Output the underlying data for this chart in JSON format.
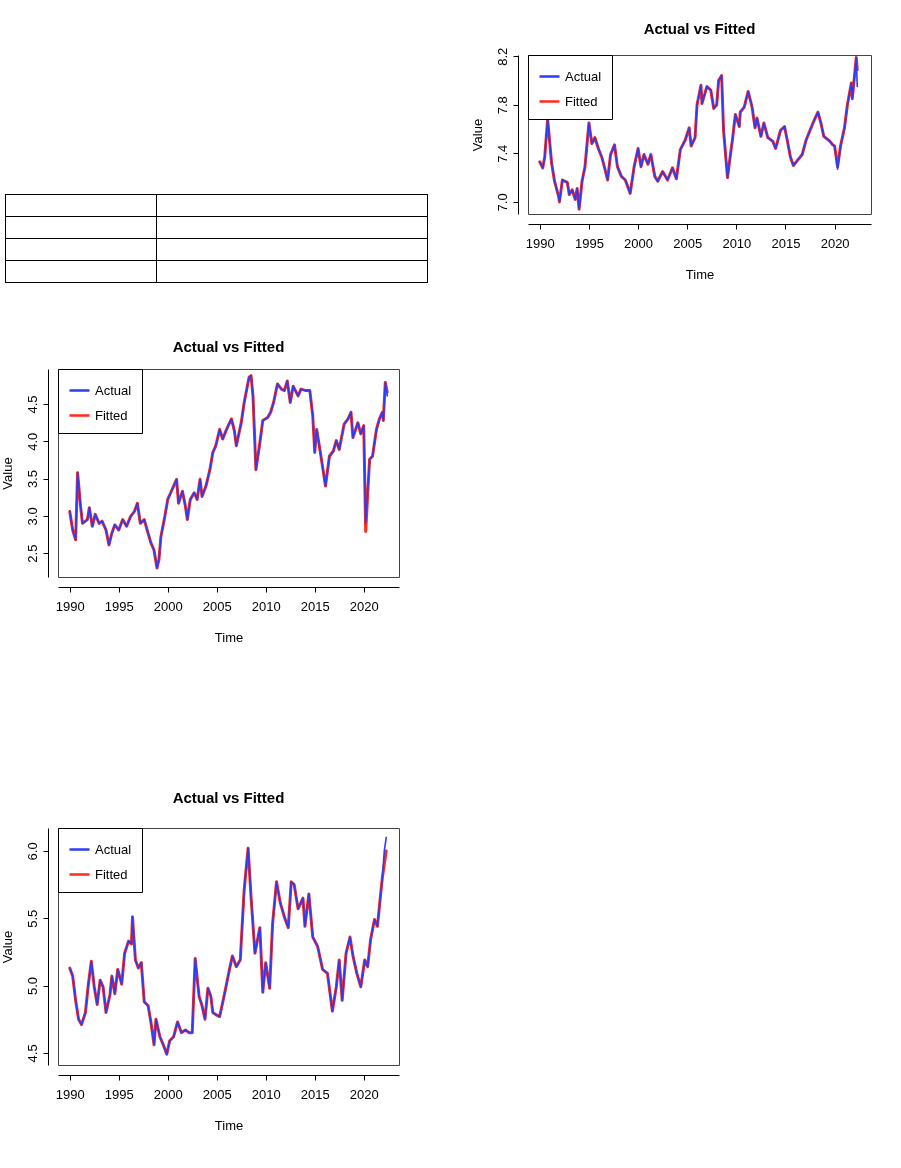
{
  "chart_data": [
    {
      "type": "line",
      "title": "Actual vs Fitted",
      "xlabel": "Time",
      "ylabel": "Value",
      "legend": "top left",
      "grid": false,
      "xlim": [
        1988.8,
        2023.6
      ],
      "ylim": [
        2.18,
        4.97
      ],
      "xticks": [
        1990,
        1995,
        2000,
        2005,
        2010,
        2015,
        2020
      ],
      "yticks": [
        2.5,
        {
          "value": 3,
          "label": "3.0"
        },
        3.5,
        {
          "value": 4,
          "label": "4.0"
        },
        4.5
      ],
      "x": [
        1990.0,
        1990.3,
        1990.6,
        1990.8,
        1991.1,
        1991.3,
        1991.8,
        1992.0,
        1992.3,
        1992.6,
        1993.0,
        1993.3,
        1993.7,
        1994.0,
        1994.3,
        1994.6,
        1995.0,
        1995.4,
        1995.8,
        1996.2,
        1996.6,
        1996.9,
        1997.2,
        1997.6,
        1997.9,
        1998.3,
        1998.6,
        1998.9,
        1999.1,
        1999.3,
        1999.7,
        2000.0,
        2000.3,
        2000.6,
        2000.9,
        2001.1,
        2001.5,
        2001.8,
        2002.0,
        2002.3,
        2002.7,
        2003.0,
        2003.3,
        2003.5,
        2003.9,
        2004.3,
        2004.6,
        2004.9,
        2005.3,
        2005.6,
        2006.0,
        2006.5,
        2006.8,
        2007.0,
        2007.5,
        2007.8,
        2008.3,
        2008.5,
        2008.7,
        2009.0,
        2009.4,
        2009.7,
        2010.2,
        2010.5,
        2010.8,
        2011.2,
        2011.6,
        2011.9,
        2012.2,
        2012.5,
        2012.8,
        2013.3,
        2013.6,
        2014.1,
        2014.5,
        2014.8,
        2015.0,
        2015.2,
        2015.6,
        2016.1,
        2016.5,
        2016.9,
        2017.2,
        2017.5,
        2018.0,
        2018.4,
        2018.7,
        2018.9,
        2019.4,
        2019.7,
        2020.0,
        2020.2,
        2020.6,
        2020.9,
        2021.3,
        2021.6,
        2021.9,
        2022.0,
        2022.2,
        2022.4
      ],
      "series": [
        {
          "name": "Actual",
          "color": "#2b3cf5",
          "values": [
            3.06,
            2.81,
            2.68,
            3.58,
            3.13,
            2.9,
            2.95,
            3.11,
            2.86,
            3.02,
            2.9,
            2.93,
            2.81,
            2.61,
            2.77,
            2.88,
            2.81,
            2.95,
            2.86,
            2.99,
            3.06,
            3.17,
            2.9,
            2.95,
            2.81,
            2.63,
            2.54,
            2.3,
            2.41,
            2.72,
            2.99,
            3.22,
            3.31,
            3.4,
            3.49,
            3.17,
            3.33,
            3.13,
            2.95,
            3.22,
            3.31,
            3.22,
            3.49,
            3.26,
            3.4,
            3.62,
            3.85,
            3.94,
            4.16,
            4.03,
            4.16,
            4.3,
            4.14,
            3.94,
            4.25,
            4.52,
            4.86,
            4.88,
            4.61,
            3.62,
            3.98,
            4.28,
            4.32,
            4.39,
            4.52,
            4.77,
            4.7,
            4.68,
            4.81,
            4.52,
            4.74,
            4.61,
            4.7,
            4.68,
            4.68,
            4.34,
            3.85,
            4.16,
            3.83,
            3.4,
            3.8,
            3.87,
            4.01,
            3.89,
            4.23,
            4.3,
            4.39,
            4.05,
            4.25,
            4.1,
            4.21,
            2.9,
            3.76,
            3.8,
            4.16,
            4.3,
            4.39,
            4.28,
            4.79,
            4.61
          ]
        },
        {
          "name": "Fitted",
          "color": "#ff2a1a",
          "values": [
            3.06,
            2.81,
            2.68,
            3.58,
            3.13,
            2.9,
            2.95,
            3.11,
            2.86,
            3.02,
            2.9,
            2.93,
            2.81,
            2.61,
            2.77,
            2.88,
            2.81,
            2.95,
            2.86,
            2.99,
            3.06,
            3.17,
            2.9,
            2.95,
            2.81,
            2.63,
            2.54,
            2.3,
            2.41,
            2.72,
            2.99,
            3.22,
            3.31,
            3.4,
            3.49,
            3.17,
            3.33,
            3.13,
            2.95,
            3.22,
            3.31,
            3.22,
            3.49,
            3.26,
            3.4,
            3.62,
            3.85,
            3.94,
            4.16,
            4.03,
            4.16,
            4.3,
            4.14,
            3.94,
            4.25,
            4.52,
            4.86,
            4.88,
            4.61,
            3.62,
            3.98,
            4.28,
            4.32,
            4.39,
            4.52,
            4.77,
            4.7,
            4.68,
            4.81,
            4.52,
            4.74,
            4.61,
            4.7,
            4.68,
            4.68,
            4.34,
            3.85,
            4.16,
            3.83,
            3.4,
            3.8,
            3.87,
            4.01,
            3.89,
            4.23,
            4.3,
            4.39,
            4.05,
            4.25,
            4.1,
            4.21,
            2.79,
            3.76,
            3.8,
            4.16,
            4.3,
            4.39,
            4.28,
            4.79,
            4.66
          ]
        }
      ]
    },
    {
      "type": "line",
      "title": "Actual vs Fitted",
      "xlabel": "Time",
      "ylabel": "Value",
      "legend": "top left",
      "grid": false,
      "xlim": [
        1988.8,
        2023.6
      ],
      "ylim": [
        4.41,
        6.17
      ],
      "xticks": [
        1990,
        1995,
        2000,
        2005,
        2010,
        2015,
        2020
      ],
      "yticks": [
        4.5,
        {
          "value": 5,
          "label": "5.0"
        },
        5.5,
        {
          "value": 6,
          "label": "6.0"
        }
      ],
      "x": [
        1990.0,
        1990.3,
        1990.6,
        1990.9,
        1991.2,
        1991.6,
        1991.9,
        1992.2,
        1992.5,
        1992.8,
        1993.1,
        1993.4,
        1993.7,
        1994.1,
        1994.3,
        1994.6,
        1994.9,
        1995.3,
        1995.6,
        1996.0,
        1996.3,
        1996.4,
        1996.7,
        1997.0,
        1997.3,
        1997.6,
        1998.0,
        1998.3,
        1998.6,
        1998.8,
        1999.2,
        1999.6,
        1999.9,
        2000.2,
        2000.6,
        2001.0,
        2001.4,
        2001.8,
        2002.2,
        2002.5,
        2002.8,
        2003.2,
        2003.5,
        2003.8,
        2004.1,
        2004.4,
        2004.6,
        2005.0,
        2005.3,
        2005.8,
        2006.3,
        2006.6,
        2007.0,
        2007.4,
        2007.8,
        2008.2,
        2008.5,
        2008.9,
        2009.4,
        2009.7,
        2010.0,
        2010.4,
        2010.7,
        2011.1,
        2011.5,
        2011.9,
        2012.3,
        2012.6,
        2012.9,
        2013.3,
        2013.8,
        2014.0,
        2014.4,
        2014.8,
        2015.3,
        2015.8,
        2016.3,
        2016.8,
        2017.2,
        2017.5,
        2017.8,
        2018.2,
        2018.6,
        2018.9,
        2019.3,
        2019.7,
        2020.1,
        2020.4,
        2020.7,
        2021.1,
        2021.4,
        2021.7,
        2021.9,
        2022.1,
        2022.3
      ],
      "series": [
        {
          "name": "Actual",
          "color": "#2b3cf5",
          "values": [
            5.13,
            5.07,
            4.89,
            4.75,
            4.71,
            4.8,
            5.01,
            5.18,
            4.99,
            4.86,
            5.04,
            4.99,
            4.8,
            4.93,
            5.07,
            4.94,
            5.12,
            5.01,
            5.24,
            5.33,
            5.31,
            5.51,
            5.19,
            5.13,
            5.17,
            4.88,
            4.85,
            4.72,
            4.56,
            4.75,
            4.62,
            4.55,
            4.49,
            4.59,
            4.62,
            4.73,
            4.65,
            4.67,
            4.65,
            4.65,
            5.2,
            4.92,
            4.85,
            4.75,
            4.98,
            4.92,
            4.8,
            4.78,
            4.77,
            4.94,
            5.12,
            5.22,
            5.14,
            5.19,
            5.71,
            6.02,
            5.66,
            5.24,
            5.43,
            4.95,
            5.17,
            4.98,
            5.46,
            5.77,
            5.61,
            5.51,
            5.43,
            5.77,
            5.75,
            5.57,
            5.65,
            5.44,
            5.68,
            5.36,
            5.29,
            5.12,
            5.09,
            4.81,
            4.99,
            5.19,
            4.89,
            5.24,
            5.36,
            5.22,
            5.09,
            4.99,
            5.19,
            5.14,
            5.34,
            5.49,
            5.44,
            5.66,
            5.8,
            6.0,
            6.1
          ]
        },
        {
          "name": "Fitted",
          "color": "#ff2a1a",
          "values": [
            5.13,
            5.07,
            4.89,
            4.75,
            4.71,
            4.8,
            5.01,
            5.18,
            4.99,
            4.86,
            5.04,
            4.99,
            4.8,
            4.93,
            5.07,
            4.94,
            5.12,
            5.01,
            5.24,
            5.33,
            5.31,
            5.51,
            5.19,
            5.13,
            5.17,
            4.88,
            4.85,
            4.72,
            4.56,
            4.75,
            4.62,
            4.55,
            4.49,
            4.59,
            4.62,
            4.73,
            4.65,
            4.67,
            4.65,
            4.65,
            5.2,
            4.92,
            4.85,
            4.75,
            4.98,
            4.92,
            4.8,
            4.78,
            4.77,
            4.94,
            5.12,
            5.22,
            5.14,
            5.19,
            5.71,
            6.02,
            5.66,
            5.24,
            5.43,
            4.95,
            5.17,
            4.98,
            5.46,
            5.77,
            5.61,
            5.51,
            5.43,
            5.77,
            5.75,
            5.57,
            5.65,
            5.44,
            5.68,
            5.36,
            5.29,
            5.12,
            5.09,
            4.81,
            4.99,
            5.19,
            4.89,
            5.24,
            5.36,
            5.22,
            5.09,
            4.99,
            5.19,
            5.14,
            5.34,
            5.49,
            5.44,
            5.66,
            5.8,
            5.9,
            6.0
          ]
        }
      ]
    },
    {
      "type": "line",
      "title": "Actual vs Fitted",
      "xlabel": "Time",
      "ylabel": "Value",
      "legend": "top left",
      "grid": false,
      "xlim": [
        1988.8,
        2023.7
      ],
      "ylim": [
        6.9,
        8.21
      ],
      "xticks": [
        1990,
        1995,
        2000,
        2005,
        2010,
        2015,
        2020
      ],
      "yticks": [
        {
          "value": 7,
          "label": "7.0"
        },
        7.4,
        7.8,
        8.2
      ],
      "x": [
        1990.0,
        1990.3,
        1990.5,
        1990.8,
        1991.2,
        1991.5,
        1991.9,
        1992.0,
        1992.3,
        1992.8,
        1993.0,
        1993.3,
        1993.6,
        1993.8,
        1994.0,
        1994.3,
        1994.6,
        1995.0,
        1995.3,
        1995.6,
        1996.0,
        1996.3,
        1996.6,
        1996.9,
        1997.2,
        1997.6,
        1997.9,
        1998.3,
        1998.7,
        1999.2,
        1999.6,
        2000.0,
        2000.3,
        2000.6,
        2001.0,
        2001.3,
        2001.7,
        2002.0,
        2002.5,
        2003.0,
        2003.5,
        2003.9,
        2004.3,
        2004.8,
        2005.2,
        2005.4,
        2005.8,
        2006.0,
        2006.4,
        2006.5,
        2007.0,
        2007.4,
        2007.7,
        2008.0,
        2008.2,
        2008.5,
        2008.7,
        2009.1,
        2009.4,
        2009.6,
        2009.9,
        2010.3,
        2010.4,
        2010.8,
        2011.2,
        2011.6,
        2011.9,
        2012.1,
        2012.5,
        2012.8,
        2013.2,
        2013.7,
        2014.0,
        2014.5,
        2014.9,
        2015.2,
        2015.5,
        2015.8,
        2016.4,
        2016.7,
        2017.1,
        2017.4,
        2017.8,
        2018.3,
        2018.6,
        2018.9,
        2019.5,
        2019.8,
        2020.0,
        2020.3,
        2020.6,
        2021.0,
        2021.3,
        2021.7,
        2021.8,
        2022.2,
        2022.3
      ],
      "series": [
        {
          "name": "Actual",
          "color": "#2b3cf5",
          "values": [
            7.33,
            7.28,
            7.37,
            7.68,
            7.32,
            7.17,
            7.05,
            7.0,
            7.18,
            7.16,
            7.06,
            7.1,
            7.02,
            7.11,
            6.94,
            7.17,
            7.29,
            7.65,
            7.48,
            7.53,
            7.43,
            7.37,
            7.28,
            7.18,
            7.39,
            7.47,
            7.29,
            7.21,
            7.18,
            7.07,
            7.29,
            7.44,
            7.29,
            7.39,
            7.31,
            7.39,
            7.21,
            7.17,
            7.25,
            7.18,
            7.28,
            7.19,
            7.43,
            7.51,
            7.61,
            7.46,
            7.53,
            7.8,
            7.96,
            7.81,
            7.95,
            7.92,
            7.77,
            7.8,
            8.0,
            8.04,
            7.59,
            7.2,
            7.39,
            7.51,
            7.72,
            7.62,
            7.74,
            7.78,
            7.91,
            7.78,
            7.61,
            7.69,
            7.54,
            7.65,
            7.53,
            7.5,
            7.44,
            7.59,
            7.62,
            7.5,
            7.37,
            7.3,
            7.36,
            7.39,
            7.51,
            7.57,
            7.65,
            7.74,
            7.65,
            7.54,
            7.5,
            7.47,
            7.46,
            7.27,
            7.46,
            7.61,
            7.8,
            7.98,
            7.85,
            8.19,
            7.95
          ]
        },
        {
          "name": "Fitted",
          "color": "#ff2a1a",
          "values": [
            7.33,
            7.28,
            7.37,
            7.68,
            7.32,
            7.17,
            7.05,
            7.0,
            7.18,
            7.16,
            7.06,
            7.1,
            7.02,
            7.11,
            6.94,
            7.17,
            7.29,
            7.65,
            7.48,
            7.53,
            7.43,
            7.37,
            7.28,
            7.18,
            7.39,
            7.47,
            7.29,
            7.21,
            7.18,
            7.07,
            7.29,
            7.44,
            7.29,
            7.39,
            7.31,
            7.39,
            7.21,
            7.17,
            7.25,
            7.18,
            7.28,
            7.19,
            7.43,
            7.51,
            7.61,
            7.46,
            7.53,
            7.8,
            7.96,
            7.81,
            7.95,
            7.92,
            7.77,
            7.8,
            8.0,
            8.04,
            7.59,
            7.2,
            7.39,
            7.51,
            7.72,
            7.62,
            7.74,
            7.78,
            7.91,
            7.78,
            7.61,
            7.69,
            7.54,
            7.65,
            7.53,
            7.5,
            7.44,
            7.59,
            7.62,
            7.5,
            7.37,
            7.3,
            7.36,
            7.39,
            7.51,
            7.57,
            7.65,
            7.74,
            7.65,
            7.54,
            7.5,
            7.47,
            7.46,
            7.29,
            7.46,
            7.61,
            7.8,
            7.98,
            7.85,
            8.19,
            8.09
          ]
        }
      ]
    }
  ]
}
